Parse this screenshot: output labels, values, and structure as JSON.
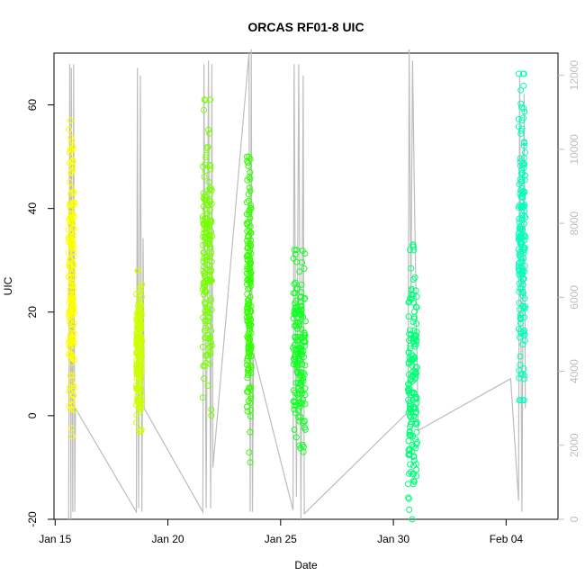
{
  "chart_data": {
    "type": "scatter",
    "title": "ORCAS RF01-8 UIC",
    "xlabel": "Date",
    "ylabel": "UIC",
    "x_ticks": [
      "Jan 15",
      "Jan 20",
      "Jan 25",
      "Jan 30",
      "Feb 04"
    ],
    "x_tick_days": [
      15,
      20,
      25,
      30,
      35
    ],
    "xlim_days": [
      14.95,
      37.3
    ],
    "ylim": [
      -20,
      70
    ],
    "y_ticks": [
      -20,
      0,
      20,
      40,
      60
    ],
    "y2_ticks": [
      0,
      2000,
      4000,
      6000,
      8000,
      10000,
      12000
    ],
    "y2lim": [
      0,
      12600
    ],
    "grid": false,
    "series": [
      {
        "color": "#ffff00",
        "day_start": 15.6,
        "day_end": 15.85,
        "y_min": -4,
        "y_max": 57
      },
      {
        "color": "#ccff00",
        "day_start": 18.6,
        "day_end": 18.85,
        "y_min": -3,
        "y_max": 28
      },
      {
        "color": "#77ff00",
        "day_start": 21.55,
        "day_end": 21.95,
        "y_min": 0,
        "y_max": 61
      },
      {
        "color": "#33ff00",
        "day_start": 23.5,
        "day_end": 23.7,
        "y_min": -9,
        "y_max": 50
      },
      {
        "color": "#11ff22",
        "day_start": 25.55,
        "day_end": 26.1,
        "y_min": -7,
        "y_max": 32
      },
      {
        "color": "#00ff77",
        "day_start": 30.65,
        "day_end": 31.05,
        "y_min": -20,
        "y_max": 33
      },
      {
        "color": "#00ffbb",
        "day_start": 35.55,
        "day_end": 35.85,
        "y_min": 3,
        "y_max": 66
      }
    ],
    "secondary_line": {
      "color": "#bdbdbd",
      "points": [
        [
          15.6,
          0
        ],
        [
          15.65,
          12300
        ],
        [
          15.7,
          0
        ],
        [
          15.72,
          12200
        ],
        [
          15.78,
          200
        ],
        [
          15.82,
          12300
        ],
        [
          15.87,
          200
        ],
        [
          15.9,
          3000
        ],
        [
          18.6,
          200
        ],
        [
          18.65,
          12200
        ],
        [
          18.7,
          300
        ],
        [
          18.78,
          12000
        ],
        [
          18.85,
          200
        ],
        [
          18.9,
          7600
        ],
        [
          18.95,
          3000
        ],
        [
          21.55,
          200
        ],
        [
          21.6,
          12300
        ],
        [
          21.7,
          300
        ],
        [
          21.8,
          12400
        ],
        [
          21.9,
          300
        ],
        [
          21.95,
          12300
        ],
        [
          22.0,
          1400
        ],
        [
          23.6,
          12600
        ],
        [
          23.65,
          200
        ],
        [
          23.7,
          12700
        ],
        [
          23.75,
          200
        ],
        [
          23.8,
          4500
        ],
        [
          25.55,
          250
        ],
        [
          25.6,
          12300
        ],
        [
          25.7,
          600
        ],
        [
          25.8,
          12300
        ],
        [
          25.9,
          0
        ],
        [
          26.0,
          12000
        ],
        [
          26.05,
          150
        ],
        [
          30.65,
          2900
        ],
        [
          30.7,
          12700
        ],
        [
          30.78,
          6000
        ],
        [
          30.85,
          12400
        ],
        [
          30.95,
          8000
        ],
        [
          31.1,
          2400
        ],
        [
          35.2,
          3800
        ],
        [
          35.55,
          500
        ],
        [
          35.6,
          12000
        ],
        [
          35.7,
          200
        ],
        [
          35.8,
          11500
        ],
        [
          35.85,
          3000
        ]
      ]
    }
  }
}
